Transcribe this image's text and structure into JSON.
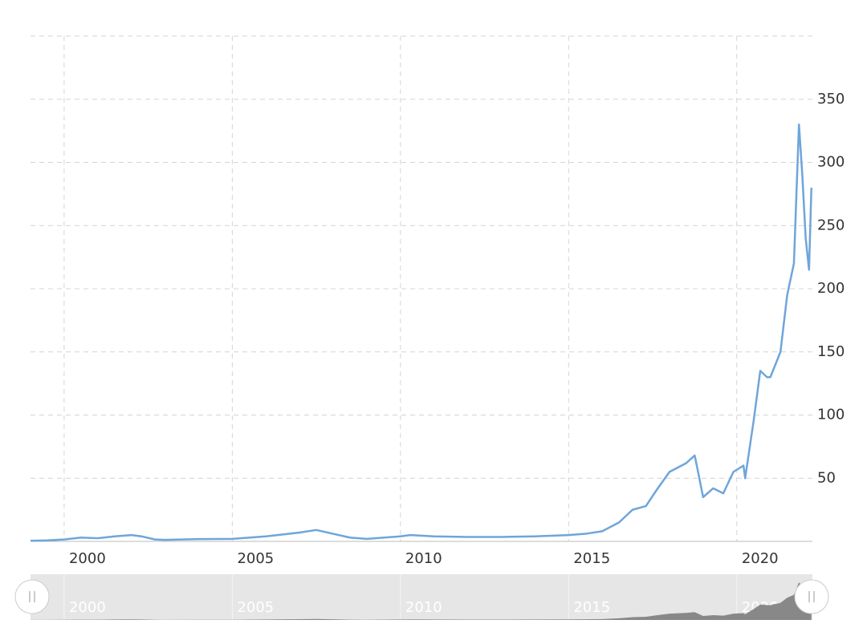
{
  "chart_data": {
    "type": "line",
    "x": [
      1999.0,
      1999.5,
      2000.0,
      2000.5,
      2001.0,
      2001.5,
      2002.0,
      2002.3,
      2002.7,
      2003.0,
      2004.0,
      2005.0,
      2006.0,
      2007.0,
      2007.5,
      2008.0,
      2008.5,
      2009.0,
      2010.0,
      2010.3,
      2011.0,
      2012.0,
      2013.0,
      2014.0,
      2015.0,
      2015.5,
      2016.0,
      2016.5,
      2016.9,
      2017.3,
      2017.6,
      2018.0,
      2018.5,
      2018.75,
      2018.85,
      2019.0,
      2019.3,
      2019.6,
      2019.9,
      2020.2,
      2020.25,
      2020.5,
      2020.7,
      2020.9,
      2021.0,
      2021.3,
      2021.5,
      2021.7,
      2021.85,
      2021.95,
      2022.05,
      2022.15,
      2022.22
    ],
    "series": [
      {
        "color": "#6fa5da",
        "values": [
          0.5,
          0.8,
          1.5,
          3,
          2.5,
          4,
          5,
          4,
          1.5,
          1.2,
          1.8,
          2,
          4,
          7,
          9,
          6,
          3,
          2,
          4,
          5,
          4,
          3.5,
          3.5,
          4,
          5,
          6,
          8,
          15,
          25,
          28,
          40,
          55,
          62,
          68,
          55,
          35,
          42,
          38,
          55,
          60,
          50,
          95,
          135,
          130,
          130,
          150,
          195,
          220,
          330,
          290,
          240,
          215,
          280
        ]
      }
    ],
    "xlim": [
      1999.0,
      2022.25
    ],
    "xticks": [
      2000,
      2005,
      2010,
      2015,
      2020
    ],
    "ylim": [
      0,
      400
    ],
    "yticks": [
      50,
      100,
      150,
      200,
      250,
      300,
      350
    ],
    "grid": true
  }
}
